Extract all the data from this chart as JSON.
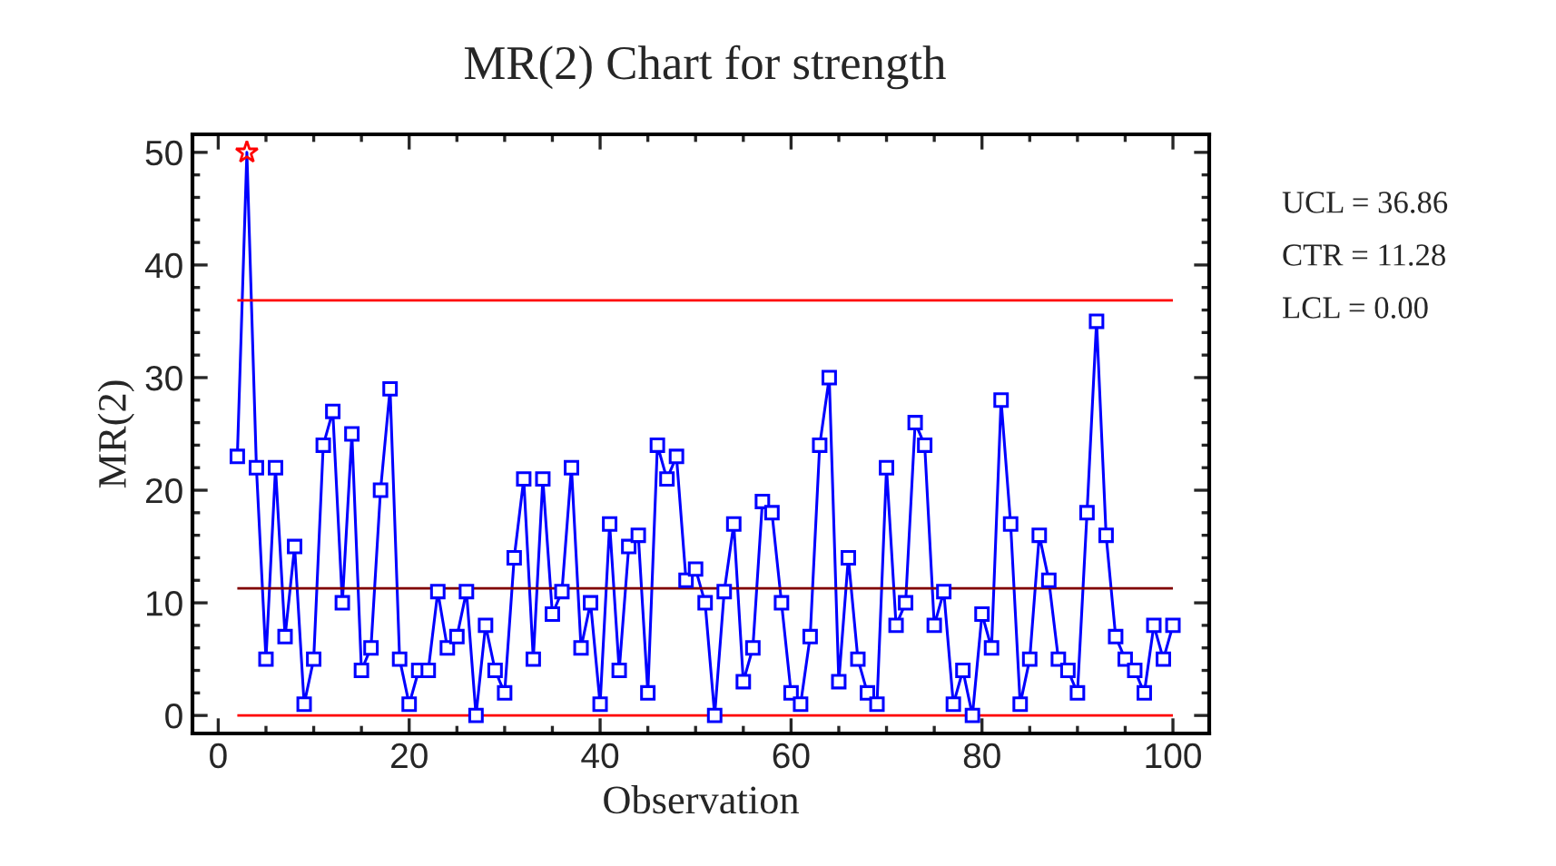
{
  "chart_data": {
    "type": "line",
    "title": "MR(2) Chart for strength",
    "xlabel": "Observation",
    "ylabel": "MR(2)",
    "series": [
      {
        "color": "#0000ff",
        "marker": "square",
        "x": [
          2,
          3,
          4,
          5,
          6,
          7,
          8,
          9,
          10,
          11,
          12,
          13,
          14,
          15,
          16,
          17,
          18,
          19,
          20,
          21,
          22,
          23,
          24,
          25,
          26,
          27,
          28,
          29,
          30,
          31,
          32,
          33,
          34,
          35,
          36,
          37,
          38,
          39,
          40,
          41,
          42,
          43,
          44,
          45,
          46,
          47,
          48,
          49,
          50,
          51,
          52,
          53,
          54,
          55,
          56,
          57,
          58,
          59,
          60,
          61,
          62,
          63,
          64,
          65,
          66,
          67,
          68,
          69,
          70,
          71,
          72,
          73,
          74,
          75,
          76,
          77,
          78,
          79,
          80,
          81,
          82,
          83,
          84,
          85,
          86,
          87,
          88,
          89,
          90,
          91,
          92,
          93,
          94,
          95,
          96,
          97,
          98,
          99,
          100
        ],
        "values": [
          23,
          50,
          22,
          5,
          22,
          7,
          15,
          1,
          5,
          24,
          27,
          10,
          25,
          4,
          6,
          20,
          29,
          5,
          1,
          4,
          4,
          11,
          6,
          7,
          11,
          0,
          8,
          4,
          2,
          14,
          21,
          5,
          21,
          9,
          11,
          22,
          6,
          10,
          1,
          17,
          4,
          15,
          16,
          2,
          24,
          21,
          23,
          12,
          13,
          10,
          0,
          11,
          17,
          3,
          6,
          19,
          18,
          10,
          2,
          1,
          7,
          24,
          30,
          3,
          14,
          5,
          2,
          1,
          22,
          8,
          10,
          26,
          24,
          8,
          11,
          1,
          4,
          0,
          9,
          6,
          28,
          17,
          1,
          5,
          16,
          12,
          5,
          4,
          2,
          18,
          35,
          16,
          7,
          5,
          4,
          2,
          8,
          5,
          8
        ]
      },
      {
        "type": "scatter",
        "color": "#ff0000",
        "marker": "star",
        "x": [
          3
        ],
        "values": [
          50
        ]
      }
    ],
    "ref_lines": [
      {
        "axis": "y",
        "value": 36.86,
        "color": "#ff0000"
      },
      {
        "axis": "y",
        "value": 11.28,
        "color": "#800000"
      },
      {
        "axis": "y",
        "value": 0,
        "color": "#ff0000"
      }
    ],
    "annotations": [
      "UCL = 36.86",
      "CTR = 11.28",
      "LCL = 0.00"
    ],
    "xlim": [
      -2.7,
      103.8
    ],
    "xticks": [
      0,
      20,
      40,
      60,
      80,
      100
    ],
    "ylim": [
      -1.6,
      51.6
    ],
    "yticks": [
      0,
      10,
      20,
      30,
      40,
      50
    ],
    "grid": false,
    "legend": false
  }
}
